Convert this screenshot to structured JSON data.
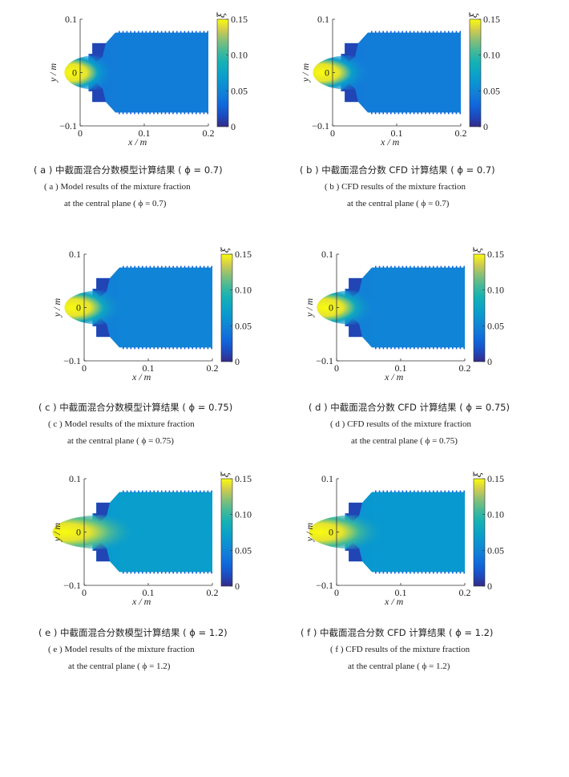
{
  "common": {
    "x_ticks": [
      "0",
      "0.1",
      "0.2"
    ],
    "y_ticks": [
      "0.1",
      "0",
      "−0.1"
    ],
    "xlabel": "x / m",
    "ylabel": "y / m",
    "colorbar_label": "ξ",
    "colorbar_ticks": [
      "0.15",
      "0.10",
      "0.05",
      "0"
    ]
  },
  "chart_data": [
    {
      "type": "heatmap",
      "id": "a",
      "xlim": [
        0,
        0.2
      ],
      "ylim": [
        -0.1,
        0.1
      ],
      "clim": [
        0,
        0.15
      ],
      "colormap": "parula",
      "field": {
        "core_value": 0.15,
        "core_length_m": 0.03,
        "downstream_value": 0.045
      },
      "caption_zh": "( a )  中截面混合分数模型计算结果 ( ϕ = 0.7)",
      "caption_en_1": "( a )  Model results of the mixture fraction",
      "caption_en_2": "at the central plane ( ϕ = 0.7)"
    },
    {
      "type": "heatmap",
      "id": "b",
      "xlim": [
        0,
        0.2
      ],
      "ylim": [
        -0.1,
        0.1
      ],
      "clim": [
        0,
        0.15
      ],
      "colormap": "parula",
      "field": {
        "core_value": 0.15,
        "core_length_m": 0.035,
        "downstream_value": 0.045
      },
      "caption_zh": "( b )  中截面混合分数 CFD 计算结果 ( ϕ = 0.7)",
      "caption_en_1": "( b )  CFD results of the mixture fraction",
      "caption_en_2": "at the central plane ( ϕ = 0.7)"
    },
    {
      "type": "heatmap",
      "id": "c",
      "xlim": [
        0,
        0.2
      ],
      "ylim": [
        -0.1,
        0.1
      ],
      "clim": [
        0,
        0.15
      ],
      "colormap": "parula",
      "field": {
        "core_value": 0.15,
        "core_length_m": 0.035,
        "downstream_value": 0.05
      },
      "caption_zh": "( c )  中截面混合分数模型计算结果 ( ϕ = 0.75)",
      "caption_en_1": "( c )  Model results of the mixture fraction",
      "caption_en_2": "at the central plane ( ϕ = 0.75)"
    },
    {
      "type": "heatmap",
      "id": "d",
      "xlim": [
        0,
        0.2
      ],
      "ylim": [
        -0.1,
        0.1
      ],
      "clim": [
        0,
        0.15
      ],
      "colormap": "parula",
      "field": {
        "core_value": 0.15,
        "core_length_m": 0.035,
        "downstream_value": 0.05
      },
      "caption_zh": "( d )  中截面混合分数 CFD 计算结果 ( ϕ = 0.75)",
      "caption_en_1": "( d )  CFD results of the mixture fraction",
      "caption_en_2": "at the central plane ( ϕ = 0.75)"
    },
    {
      "type": "heatmap",
      "id": "e",
      "xlim": [
        0,
        0.2
      ],
      "ylim": [
        -0.1,
        0.1
      ],
      "clim": [
        0,
        0.15
      ],
      "colormap": "parula",
      "field": {
        "core_value": 0.15,
        "core_length_m": 0.05,
        "downstream_value": 0.07
      },
      "caption_zh": "( e ) 中截面混合分数模型计算结果 ( ϕ = 1.2)",
      "caption_en_1": "( e )  Model results of the mixture fraction",
      "caption_en_2": "at the central plane ( ϕ = 1.2)"
    },
    {
      "type": "heatmap",
      "id": "f",
      "xlim": [
        0,
        0.2
      ],
      "ylim": [
        -0.1,
        0.1
      ],
      "clim": [
        0,
        0.15
      ],
      "colormap": "parula",
      "field": {
        "core_value": 0.15,
        "core_length_m": 0.045,
        "downstream_value": 0.065
      },
      "caption_zh": "( f )  中截面混合分数 CFD 计算结果 ( ϕ = 1.2)",
      "caption_en_1": "( f )  CFD results of the mixture fraction",
      "caption_en_2": "at the central plane ( ϕ = 1.2)"
    }
  ]
}
